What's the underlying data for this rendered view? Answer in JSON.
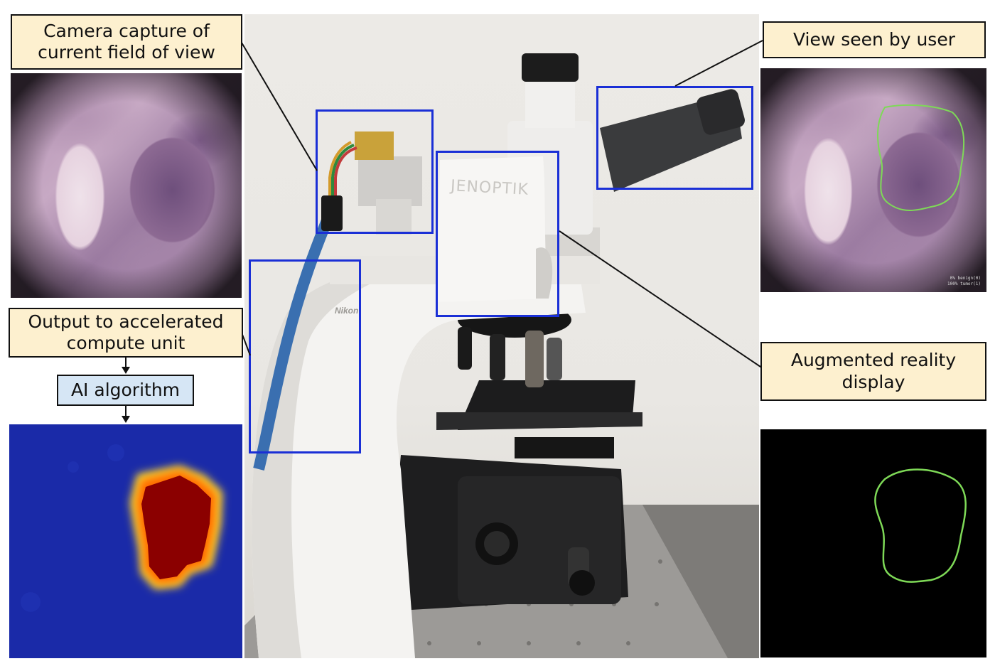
{
  "labels": {
    "camera_capture": [
      "Camera capture of",
      "current field of view"
    ],
    "view_seen": "View seen by user",
    "output_compute": [
      "Output to accelerated",
      "compute unit"
    ],
    "ai_algorithm": "AI algorithm",
    "augmented_display": [
      "Augmented reality",
      "display"
    ]
  },
  "microscope": {
    "brand_module": "JENOPTIK",
    "brand_body": "Nikon"
  },
  "view_legend": [
    "0%  benign(0)",
    "100%  tumor(1)"
  ],
  "colors": {
    "label_fill": "#fdf0cf",
    "ai_label_fill": "#d6e6f5",
    "highlight_box": "#1a2fd6",
    "heatmap_background": "#1a2aa8",
    "heatmap_hot": "#8b0000",
    "contour": "#7ed957",
    "display_background": "#000000"
  }
}
